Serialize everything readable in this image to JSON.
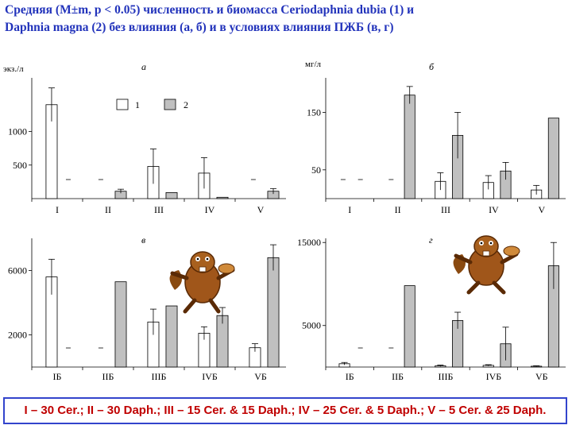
{
  "title": "Средняя (M±m, p < 0.05) численность и биомасса Ceriodaphnia dubia (1) и\nDaphnia magna (2) без влияния (а, б) и в условиях влияния ПЖБ (в, г)",
  "legend": {
    "items": [
      "1",
      "2"
    ]
  },
  "footer": "I – 30 Cer.; II – 30 Daph.; III – 15 Cer. & 15 Daph.; IV – 25 Cer. & 5 Daph.; V – 5 Cer. & 25 Daph.",
  "colors": {
    "series1": "#ffffff",
    "series2": "#c0c0c0",
    "title": "#2233bb",
    "footer_text": "#c00000",
    "footer_border": "#3344cc"
  },
  "mascot": "beaver-mascot-icon",
  "chart_data": [
    {
      "type": "bar",
      "panel": "а",
      "ylabel": "экз./л",
      "yticks": [
        500,
        1000
      ],
      "ylim": [
        0,
        1800
      ],
      "categories": [
        "I",
        "II",
        "III",
        "IV",
        "V"
      ],
      "legend_position": "top-center",
      "series": [
        {
          "name": "1",
          "values": [
            1400,
            null,
            480,
            380,
            null
          ],
          "errors": [
            250,
            null,
            260,
            230,
            null
          ]
        },
        {
          "name": "2",
          "values": [
            null,
            110,
            90,
            20,
            110
          ],
          "errors": [
            null,
            30,
            null,
            null,
            40
          ]
        }
      ]
    },
    {
      "type": "bar",
      "panel": "б",
      "ylabel": "мг/л",
      "yticks": [
        50,
        150
      ],
      "ylim": [
        0,
        210
      ],
      "categories": [
        "I",
        "II",
        "III",
        "IV",
        "V"
      ],
      "series": [
        {
          "name": "1",
          "values": [
            null,
            null,
            30,
            28,
            15
          ],
          "errors": [
            null,
            null,
            15,
            12,
            8
          ]
        },
        {
          "name": "2",
          "values": [
            null,
            180,
            110,
            48,
            140
          ],
          "errors": [
            null,
            15,
            40,
            15,
            null
          ]
        }
      ]
    },
    {
      "type": "bar",
      "panel": "в",
      "yticks": [
        2000,
        6000
      ],
      "ylim": [
        0,
        8000
      ],
      "categories": [
        "IБ",
        "IIБ",
        "IIIБ",
        "IVБ",
        "VБ"
      ],
      "series": [
        {
          "name": "1",
          "values": [
            5600,
            null,
            2800,
            2100,
            1200
          ],
          "errors": [
            1100,
            null,
            800,
            400,
            250
          ]
        },
        {
          "name": "2",
          "values": [
            null,
            5300,
            3800,
            3200,
            6800
          ],
          "errors": [
            null,
            null,
            null,
            500,
            800
          ]
        }
      ]
    },
    {
      "type": "bar",
      "panel": "г",
      "yticks": [
        5000,
        15000
      ],
      "ylim": [
        0,
        15500
      ],
      "categories": [
        "IБ",
        "IIБ",
        "IIIБ",
        "IVБ",
        "VБ"
      ],
      "series": [
        {
          "name": "1",
          "values": [
            400,
            null,
            150,
            200,
            100
          ],
          "errors": [
            150,
            null,
            80,
            80,
            50
          ]
        },
        {
          "name": "2",
          "values": [
            null,
            9800,
            5600,
            2800,
            12200
          ],
          "errors": [
            null,
            null,
            1000,
            2000,
            2800
          ]
        }
      ]
    }
  ]
}
